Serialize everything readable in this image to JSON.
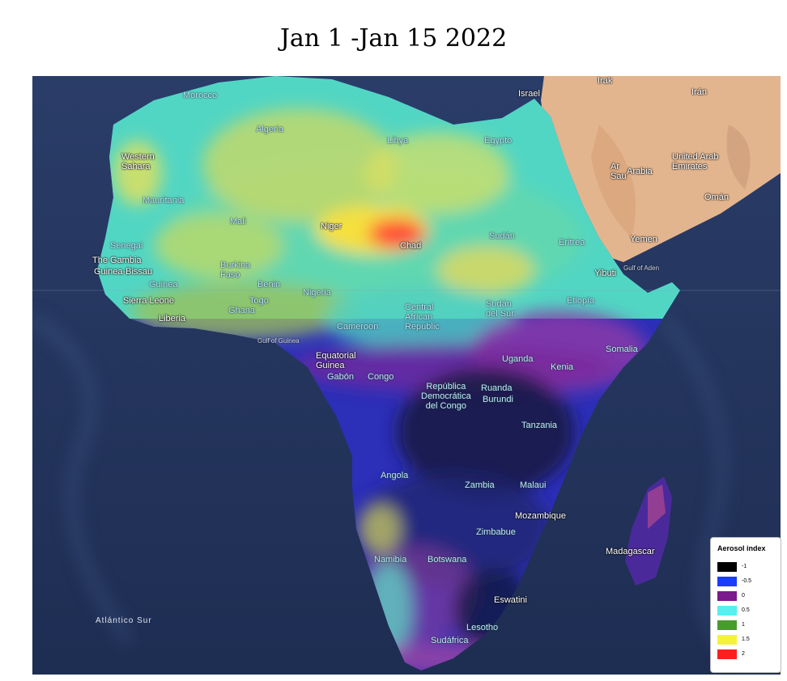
{
  "title": "Jan 1 -Jan 15 2022",
  "legend": {
    "title": "Aerosol index",
    "items": [
      {
        "label": "-1",
        "color": "#000000"
      },
      {
        "label": "-0.5",
        "color": "#1a3cff"
      },
      {
        "label": "0",
        "color": "#7a1a8c"
      },
      {
        "label": "0.5",
        "color": "#55f0f0"
      },
      {
        "label": "1",
        "color": "#4a9a2e"
      },
      {
        "label": "1.5",
        "color": "#f5f23a"
      },
      {
        "label": "2",
        "color": "#ff1f1f"
      }
    ]
  },
  "places": {
    "morocco": "Morocco",
    "algeria": "Algeria",
    "libya": "Libya",
    "egypt": "Egypto",
    "israel": "Israel",
    "iraq": "Irak",
    "iran": "Irán",
    "uae": "United Arab\nEmirates",
    "saudi": "Arabia",
    "saudi_prefix": "Ar\nSau",
    "oman": "Omán",
    "yemen": "Yemen",
    "gulf_aden": "Gulf of Aden",
    "western_sahara": "Western\nSahara",
    "mauritania": "Mauritania",
    "mali": "Mali",
    "niger": "Niger",
    "chad": "Chad",
    "sudan": "Sudán",
    "eritrea": "Eritrea",
    "djibouti": "Yibuti",
    "senegal": "Senegal",
    "gambia": "The Gambia",
    "guinea_bissau": "Guinea-Bissau",
    "guinea": "Guinea",
    "burkina": "Burkina\nFaso",
    "benin": "Benin",
    "nigeria": "Nigeria",
    "togo": "Togo",
    "ghana": "Ghana",
    "sierra_leone": "Sierra Leone",
    "liberia": "Liberia",
    "car": "Central\nAfrican\nRepublic",
    "south_sudan": "Sudán\ndel Sur",
    "ethiopia": "Etiopía",
    "somalia": "Somalia",
    "cameroon": "Cameroon",
    "gulf_guinea": "Gulf of Guinea",
    "eq_guinea": "Equatorial\nGuinea",
    "gabon": "Gabón",
    "congo": "Congo",
    "uganda": "Uganda",
    "kenya": "Kenia",
    "drc": "República\nDemocrática\ndel Congo",
    "rwanda": "Ruanda",
    "burundi": "Burundi",
    "tanzania": "Tanzania",
    "angola": "Angola",
    "zambia": "Zambia",
    "malawi": "Malaui",
    "mozambique": "Mozambique",
    "zimbabwe": "Zimbabue",
    "madagascar": "Madagascar",
    "namibia": "Namibia",
    "botswana": "Botswana",
    "eswatini": "Eswatini",
    "lesotho": "Lesotho",
    "south_africa": "Sudáfrica",
    "atlantic": "Atlántico Sur"
  }
}
